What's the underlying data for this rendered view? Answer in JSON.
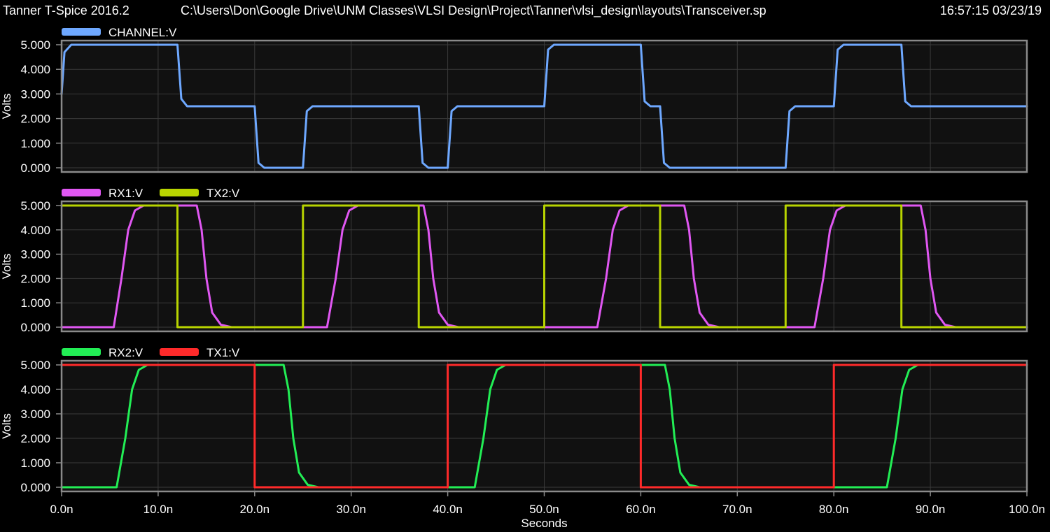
{
  "header": {
    "app": "Tanner T-Spice 2016.2",
    "path": "C:\\Users\\Don\\Google Drive\\UNM Classes\\VLSI Design\\Project\\Tanner\\vlsi_design\\layouts\\Transceiver.sp",
    "timestamp": "16:57:15 03/23/19"
  },
  "colors": {
    "background": "#000000",
    "plot_area": "#111111",
    "frame": "#8a8a8a",
    "grid": "#3a3a3a"
  },
  "chart_data": [
    {
      "type": "line",
      "ylabel": "Volts",
      "xlabel": "",
      "ylim": [
        0,
        5
      ],
      "xlim": [
        0,
        100
      ],
      "yticks": [
        "0.000",
        "1.000",
        "2.000",
        "3.000",
        "4.000",
        "5.000"
      ],
      "series": [
        {
          "name": "CHANNEL:V",
          "color": "#6ea8ff",
          "x": [
            0,
            0.3,
            1,
            12,
            12.4,
            13,
            20,
            20.4,
            21,
            25,
            25.4,
            26,
            37,
            37.4,
            38,
            40,
            40.4,
            41,
            50,
            50.4,
            51,
            60,
            60.4,
            61,
            62,
            62.4,
            63,
            75,
            75.4,
            76,
            80,
            80.4,
            81,
            87,
            87.4,
            88,
            100
          ],
          "y": [
            3.0,
            4.7,
            5.0,
            5.0,
            2.8,
            2.5,
            2.5,
            0.2,
            0.0,
            0.0,
            2.3,
            2.5,
            2.5,
            0.2,
            0.0,
            0.0,
            2.3,
            2.5,
            2.5,
            4.8,
            5.0,
            5.0,
            2.7,
            2.5,
            2.5,
            0.2,
            0.0,
            0.0,
            2.3,
            2.5,
            2.5,
            4.8,
            5.0,
            5.0,
            2.7,
            2.5,
            2.5
          ]
        }
      ]
    },
    {
      "type": "line",
      "ylabel": "Volts",
      "xlabel": "",
      "ylim": [
        0,
        5
      ],
      "xlim": [
        0,
        100
      ],
      "yticks": [
        "0.000",
        "1.000",
        "2.000",
        "3.000",
        "4.000",
        "5.000"
      ],
      "series": [
        {
          "name": "RX1:V",
          "color": "#e057f2",
          "x": [
            0,
            5.4,
            6.2,
            6.9,
            7.6,
            8.5,
            9.5,
            14,
            14.5,
            15,
            15.6,
            16.5,
            17.6,
            27.5,
            28.4,
            29.1,
            29.8,
            30.7,
            31.7,
            37.5,
            38.0,
            38.5,
            39.1,
            40.0,
            41.1,
            55.5,
            56.4,
            57.1,
            57.8,
            58.7,
            59.7,
            64.5,
            65.0,
            65.5,
            66.1,
            67.0,
            68.1,
            78,
            78.9,
            79.6,
            80.3,
            81.2,
            82.2,
            89,
            89.5,
            90.0,
            90.6,
            91.5,
            92.6,
            100
          ],
          "y": [
            0.0,
            0.0,
            2.0,
            4.0,
            4.8,
            5.0,
            5.0,
            5.0,
            4.0,
            2.0,
            0.6,
            0.1,
            0.0,
            0.0,
            2.0,
            4.0,
            4.8,
            5.0,
            5.0,
            5.0,
            4.0,
            2.0,
            0.6,
            0.1,
            0.0,
            0.0,
            2.0,
            4.0,
            4.8,
            5.0,
            5.0,
            5.0,
            4.0,
            2.0,
            0.6,
            0.1,
            0.0,
            0.0,
            2.0,
            4.0,
            4.8,
            5.0,
            5.0,
            5.0,
            4.0,
            2.0,
            0.6,
            0.1,
            0.0,
            0.0
          ]
        },
        {
          "name": "TX2:V",
          "color": "#b8d400",
          "x": [
            0,
            12,
            12,
            25,
            25,
            37,
            37,
            50,
            50,
            62,
            62,
            75,
            75,
            87,
            87,
            100
          ],
          "y": [
            5,
            5,
            0,
            0,
            5,
            5,
            0,
            0,
            5,
            5,
            0,
            0,
            5,
            5,
            0,
            0
          ]
        }
      ]
    },
    {
      "type": "line",
      "ylabel": "Volts",
      "xlabel": "Seconds",
      "ylim": [
        0,
        5
      ],
      "xlim": [
        0,
        100
      ],
      "yticks": [
        "0.000",
        "1.000",
        "2.000",
        "3.000",
        "4.000",
        "5.000"
      ],
      "xticks": [
        "0.0n",
        "10.0n",
        "20.0n",
        "30.0n",
        "40.0n",
        "50.0n",
        "60.0n",
        "70.0n",
        "80.0n",
        "90.0n",
        "100.0n"
      ],
      "series": [
        {
          "name": "RX2:V",
          "color": "#22ee55",
          "x": [
            0,
            5.7,
            6.6,
            7.3,
            8.0,
            8.9,
            9.9,
            23,
            23.5,
            24,
            24.6,
            25.5,
            26.6,
            42.8,
            43.7,
            44.4,
            45.1,
            46.0,
            47.0,
            62.5,
            63.0,
            63.5,
            64.1,
            65.0,
            66.1,
            85.5,
            86.4,
            87.1,
            87.8,
            88.7,
            89.7,
            100
          ],
          "y": [
            0.0,
            0.0,
            2.0,
            4.0,
            4.8,
            5.0,
            5.0,
            5.0,
            4.0,
            2.0,
            0.6,
            0.1,
            0.0,
            0.0,
            2.0,
            4.0,
            4.8,
            5.0,
            5.0,
            5.0,
            4.0,
            2.0,
            0.6,
            0.1,
            0.0,
            0.0,
            2.0,
            4.0,
            4.8,
            5.0,
            5.0,
            5.0
          ]
        },
        {
          "name": "TX1:V",
          "color": "#ff2a2a",
          "x": [
            0,
            20,
            20,
            40,
            40,
            60,
            60,
            80,
            80,
            100
          ],
          "y": [
            5,
            5,
            0,
            0,
            5,
            5,
            0,
            0,
            5,
            5
          ]
        }
      ]
    }
  ]
}
